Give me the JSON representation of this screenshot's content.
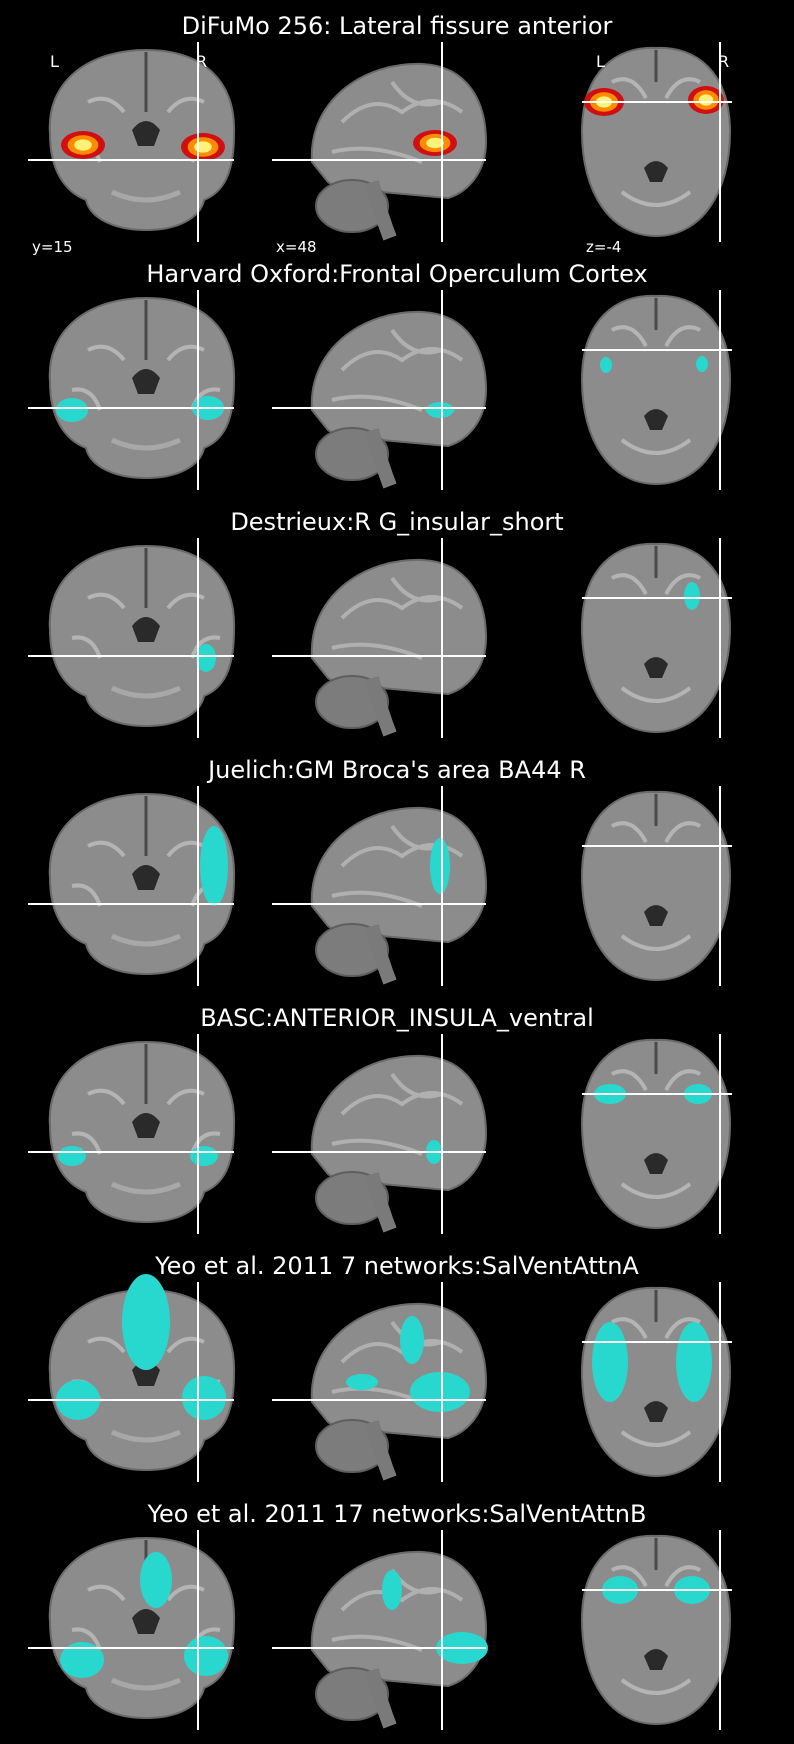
{
  "rows": [
    {
      "title": "DiFuMo 256: Lateral fissure anterior",
      "overlay": "hot",
      "labels": {
        "coronal_left": "L",
        "coronal_right": "R",
        "axial_left": "L",
        "axial_right": "R"
      },
      "coords": {
        "coronal": "y=15",
        "sagittal": "x=48",
        "axial": "z=-4"
      }
    },
    {
      "title": "Harvard Oxford:Frontal Operculum Cortex",
      "overlay": "cyan"
    },
    {
      "title": "Destrieux:R G_insular_short",
      "overlay": "cyan"
    },
    {
      "title": "Juelich:GM Broca's area BA44 R",
      "overlay": "cyan"
    },
    {
      "title": "BASC:ANTERIOR_INSULA_ventral",
      "overlay": "cyan"
    },
    {
      "title": "Yeo et al. 2011 7 networks:SalVentAttnA",
      "overlay": "cyan"
    },
    {
      "title": "Yeo et al. 2011 17 networks:SalVentAttnB",
      "overlay": "cyan"
    }
  ],
  "colors": {
    "background": "#000000",
    "brain": "#8c8c8c",
    "crosshair": "#ffffff",
    "overlay_cyan": "#28d8cf",
    "overlay_hot": "#ffd400"
  }
}
